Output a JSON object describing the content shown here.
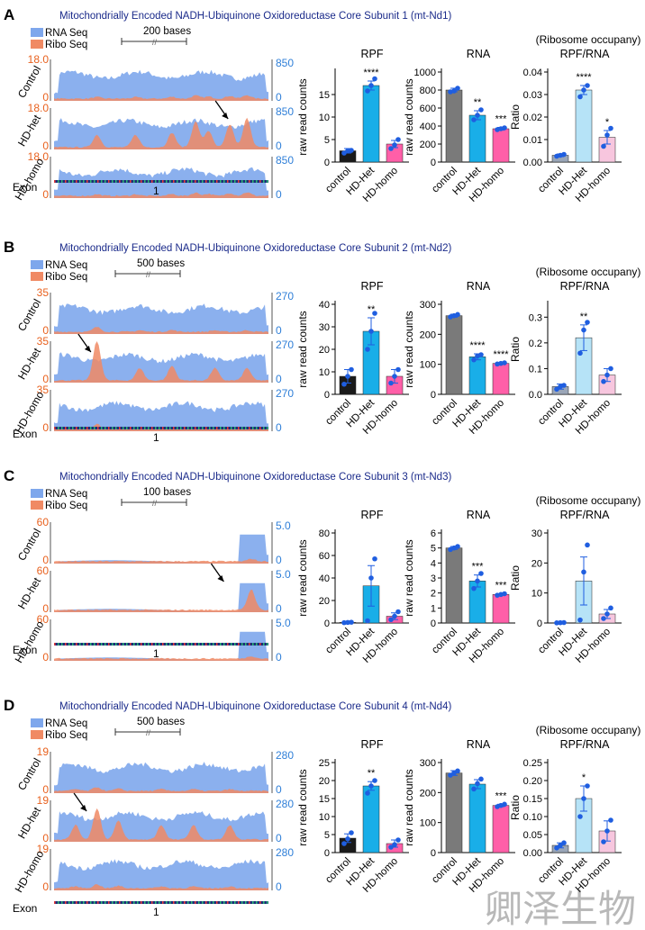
{
  "figure": {
    "colors": {
      "rna": "#7ea7ec",
      "ribo": "#f08a64",
      "ribo_axis": "#e8611e",
      "rna_axis": "#2f7fd8",
      "title": "#1a2a8a",
      "control_bar": "#1a1a1a",
      "gray_bar": "#7a7a7a",
      "het_bar": "#19aee8",
      "homo_bar": "#ff5fa8",
      "light_blue_bar": "#b6e3f7",
      "light_pink_bar": "#f7c6de",
      "light_gray_bar": "#9aa6b8",
      "dots": "#1f5ee0",
      "error": "#1f5ee0"
    },
    "watermark": "卿泽生物"
  },
  "panels": [
    {
      "letter": "A",
      "title": "Mitochondrially Encoded NADH-Ubiquinone Oxidoreductase Core Subunit 1 (mt-Nd1)",
      "legend": [
        "RNA Seq",
        "Ribo Seq"
      ],
      "scale_label": "200 bases",
      "tracks": [
        {
          "name": "Control",
          "ribo_max": "18.0",
          "ribo_min": "0",
          "rna_max": "850",
          "rna_min": "0"
        },
        {
          "name": "HD-het",
          "ribo_max": "18.0",
          "ribo_min": "0",
          "rna_max": "850",
          "rna_min": "0"
        },
        {
          "name": "HD-homo",
          "ribo_max": "18.0",
          "ribo_min": "0",
          "rna_max": "850",
          "rna_min": "0"
        }
      ],
      "exon_label": "Exon",
      "exon_number": "1",
      "charts": [
        {
          "type": "bar",
          "title": "RPF",
          "ylabel": "raw read counts",
          "categories": [
            "control",
            "HD-Het",
            "HD-homo"
          ],
          "values": [
            2.5,
            17,
            4
          ],
          "errors": [
            0.5,
            1.0,
            0.8
          ],
          "points": [
            [
              2.0,
              2.5,
              2.6
            ],
            [
              15.8,
              17.0,
              18.5
            ],
            [
              3.0,
              3.8,
              5.0
            ]
          ],
          "significance": [
            "",
            "****",
            ""
          ],
          "ylim": [
            0,
            20
          ],
          "ticks": [
            0,
            5,
            10,
            15
          ],
          "bar_style": "strong"
        },
        {
          "type": "bar",
          "title": "RNA",
          "ylabel": "raw read counts",
          "categories": [
            "control",
            "HD-Het",
            "HD-homo"
          ],
          "values": [
            800,
            520,
            370
          ],
          "errors": [
            20,
            50,
            15
          ],
          "points": [
            [
              780,
              790,
              820
            ],
            [
              470,
              520,
              580
            ],
            [
              360,
              370,
              380
            ]
          ],
          "significance": [
            "",
            "**",
            "***"
          ],
          "ylim": [
            0,
            1000
          ],
          "ticks": [
            0,
            200,
            400,
            600,
            800,
            1000
          ],
          "bar_style": "rna"
        },
        {
          "type": "bar",
          "title": "RPF/RNA",
          "supertitle": "(Ribosome occupany)",
          "ylabel": "Ratio",
          "categories": [
            "control",
            "HD-Het",
            "HD-homo"
          ],
          "values": [
            0.003,
            0.032,
            0.011
          ],
          "errors": [
            0.0006,
            0.002,
            0.003
          ],
          "points": [
            [
              0.0026,
              0.003,
              0.0034
            ],
            [
              0.029,
              0.032,
              0.034
            ],
            [
              0.007,
              0.012,
              0.015
            ]
          ],
          "significance": [
            "",
            "****",
            "*"
          ],
          "ylim": [
            0,
            0.04
          ],
          "ticks": [
            0,
            0.01,
            0.02,
            0.03,
            0.04
          ],
          "tick_labels": [
            "0.00",
            "0.01",
            "0.02",
            "0.03",
            "0.04"
          ],
          "bar_style": "light"
        }
      ]
    },
    {
      "letter": "B",
      "title": "Mitochondrially Encoded NADH-Ubiquinone Oxidoreductase Core Subunit 2 (mt-Nd2)",
      "legend": [
        "RNA Seq",
        "Ribo Seq"
      ],
      "scale_label": "500 bases",
      "tracks": [
        {
          "name": "Control",
          "ribo_max": "35",
          "ribo_min": "0",
          "rna_max": "270",
          "rna_min": "0"
        },
        {
          "name": "HD-het",
          "ribo_max": "35",
          "ribo_min": "0",
          "rna_max": "270",
          "rna_min": "0"
        },
        {
          "name": "HD-homo",
          "ribo_max": "35",
          "ribo_min": "0",
          "rna_max": "270",
          "rna_min": "0"
        }
      ],
      "exon_label": "Exon",
      "exon_number": "1",
      "charts": [
        {
          "type": "bar",
          "title": "RPF",
          "ylabel": "raw read counts",
          "categories": [
            "control",
            "HD-Het",
            "HD-homo"
          ],
          "values": [
            8,
            28,
            8
          ],
          "errors": [
            3,
            6,
            3
          ],
          "points": [
            [
              4.5,
              8,
              11
            ],
            [
              20,
              28,
              36
            ],
            [
              5,
              8,
              11
            ]
          ],
          "significance": [
            "",
            "**",
            ""
          ],
          "ylim": [
            0,
            40
          ],
          "ticks": [
            0,
            10,
            20,
            30,
            40
          ],
          "bar_style": "strong"
        },
        {
          "type": "bar",
          "title": "RNA",
          "ylabel": "raw read counts",
          "categories": [
            "control",
            "HD-Het",
            "HD-homo"
          ],
          "values": [
            262,
            125,
            103
          ],
          "errors": [
            5,
            10,
            2
          ],
          "points": [
            [
              258,
              262,
              266
            ],
            [
              115,
              128,
              132
            ],
            [
              101,
              103,
              105
            ]
          ],
          "significance": [
            "",
            "****",
            "****"
          ],
          "ylim": [
            0,
            300
          ],
          "ticks": [
            0,
            100,
            200,
            300
          ],
          "bar_style": "rna"
        },
        {
          "type": "bar",
          "title": "RPF/RNA",
          "supertitle": "(Ribosome occupany)",
          "ylabel": "Ratio",
          "categories": [
            "control",
            "HD-Het",
            "HD-homo"
          ],
          "values": [
            0.03,
            0.22,
            0.075
          ],
          "errors": [
            0.01,
            0.05,
            0.025
          ],
          "points": [
            [
              0.02,
              0.03,
              0.035
            ],
            [
              0.16,
              0.25,
              0.28
            ],
            [
              0.05,
              0.075,
              0.1
            ]
          ],
          "significance": [
            "",
            "**",
            ""
          ],
          "ylim": [
            0,
            0.35
          ],
          "ticks": [
            0,
            0.1,
            0.2,
            0.3
          ],
          "tick_labels": [
            "0.0",
            "0.1",
            "0.2",
            "0.3"
          ],
          "bar_style": "light"
        }
      ]
    },
    {
      "letter": "C",
      "title": "Mitochondrially Encoded NADH-Ubiquinone Oxidoreductase Core Subunit 3 (mt-Nd3)",
      "legend": [
        "RNA Seq",
        "Ribo Seq"
      ],
      "scale_label": "100 bases",
      "tracks": [
        {
          "name": "Control",
          "ribo_max": "60",
          "ribo_min": "0",
          "rna_max": "5.0",
          "rna_min": "0"
        },
        {
          "name": "HD-het",
          "ribo_max": "60",
          "ribo_min": "0",
          "rna_max": "5.0",
          "rna_min": "0"
        },
        {
          "name": "HD-homo",
          "ribo_max": "60",
          "ribo_min": "0",
          "rna_max": "5.0",
          "rna_min": "0"
        }
      ],
      "exon_label": "Exon",
      "exon_number": "1",
      "charts": [
        {
          "type": "bar",
          "title": "RPF",
          "ylabel": "raw read counts",
          "categories": [
            "control",
            "HD-Het",
            "HD-homo"
          ],
          "values": [
            0.5,
            33,
            6
          ],
          "errors": [
            0.2,
            18,
            3
          ],
          "points": [
            [
              0.3,
              0.5,
              0.7
            ],
            [
              2,
              40,
              57
            ],
            [
              3,
              6,
              10
            ]
          ],
          "significance": [
            "",
            "",
            ""
          ],
          "ylim": [
            0,
            80
          ],
          "ticks": [
            0,
            20,
            40,
            60,
            80
          ],
          "bar_style": "strong"
        },
        {
          "type": "bar",
          "title": "RNA",
          "ylabel": "raw read counts",
          "categories": [
            "control",
            "HD-Het",
            "HD-homo"
          ],
          "values": [
            5.0,
            2.8,
            1.9
          ],
          "errors": [
            0.1,
            0.4,
            0.05
          ],
          "points": [
            [
              4.9,
              5.0,
              5.1
            ],
            [
              2.3,
              2.8,
              3.3
            ],
            [
              1.85,
              1.9,
              1.95
            ]
          ],
          "significance": [
            "",
            "***",
            "***"
          ],
          "ylim": [
            0,
            6
          ],
          "ticks": [
            0,
            1,
            2,
            3,
            4,
            5,
            6
          ],
          "bar_style": "rna"
        },
        {
          "type": "bar",
          "title": "RPF/RNA",
          "supertitle": "(Ribosome occupany)",
          "ylabel": "Ratio",
          "categories": [
            "control",
            "HD-Het",
            "HD-homo"
          ],
          "values": [
            0.1,
            14,
            3
          ],
          "errors": [
            0.05,
            8,
            1.5
          ],
          "points": [
            [
              0.05,
              0.1,
              0.15
            ],
            [
              1,
              17,
              26
            ],
            [
              1.5,
              3,
              5
            ]
          ],
          "significance": [
            "",
            "",
            ""
          ],
          "ylim": [
            0,
            30
          ],
          "ticks": [
            0,
            10,
            20,
            30
          ],
          "bar_style": "light"
        }
      ]
    },
    {
      "letter": "D",
      "title": "Mitochondrially Encoded NADH-Ubiquinone Oxidoreductase Core Subunit 4 (mt-Nd4)",
      "legend": [
        "RNA Seq",
        "Ribo Seq"
      ],
      "scale_label": "500 bases",
      "tracks": [
        {
          "name": "Control",
          "ribo_max": "19",
          "ribo_min": "0",
          "rna_max": "280",
          "rna_min": "0"
        },
        {
          "name": "HD-het",
          "ribo_max": "19",
          "ribo_min": "0",
          "rna_max": "280",
          "rna_min": "0"
        },
        {
          "name": "HD-homo",
          "ribo_max": "19",
          "ribo_min": "0",
          "rna_max": "280",
          "rna_min": "0"
        }
      ],
      "exon_label": "Exon",
      "exon_number": "1",
      "charts": [
        {
          "type": "bar",
          "title": "RPF",
          "ylabel": "raw read counts",
          "categories": [
            "control",
            "HD-Het",
            "HD-homo"
          ],
          "values": [
            4,
            18.5,
            2.5
          ],
          "errors": [
            1.2,
            1.2,
            1.0
          ],
          "points": [
            [
              2.5,
              3.8,
              5.5
            ],
            [
              16.5,
              18.5,
              20
            ],
            [
              1.5,
              2.2,
              3.5
            ]
          ],
          "significance": [
            "",
            "**",
            ""
          ],
          "ylim": [
            0,
            25
          ],
          "ticks": [
            0,
            5,
            10,
            15,
            20,
            25
          ],
          "bar_style": "strong"
        },
        {
          "type": "bar",
          "title": "RNA",
          "ylabel": "raw read counts",
          "categories": [
            "control",
            "HD-Het",
            "HD-homo"
          ],
          "values": [
            265,
            228,
            157
          ],
          "errors": [
            8,
            15,
            4
          ],
          "points": [
            [
              258,
              265,
              272
            ],
            [
              212,
              230,
              245
            ],
            [
              153,
              157,
              161
            ]
          ],
          "significance": [
            "",
            "",
            "***"
          ],
          "ylim": [
            0,
            300
          ],
          "ticks": [
            0,
            100,
            200,
            300
          ],
          "bar_style": "rna"
        },
        {
          "type": "bar",
          "title": "RPF/RNA",
          "supertitle": "(Ribosome occupany)",
          "ylabel": "Ratio",
          "categories": [
            "control",
            "HD-Het",
            "HD-homo"
          ],
          "values": [
            0.02,
            0.15,
            0.06
          ],
          "errors": [
            0.007,
            0.035,
            0.028
          ],
          "points": [
            [
              0.013,
              0.02,
              0.027
            ],
            [
              0.1,
              0.15,
              0.185
            ],
            [
              0.03,
              0.06,
              0.09
            ]
          ],
          "significance": [
            "",
            "*",
            ""
          ],
          "ylim": [
            0,
            0.25
          ],
          "ticks": [
            0,
            0.05,
            0.1,
            0.15,
            0.2,
            0.25
          ],
          "tick_labels": [
            "0.00",
            "0.05",
            "0.10",
            "0.15",
            "0.20",
            "0.25"
          ],
          "bar_style": "light"
        }
      ]
    }
  ]
}
